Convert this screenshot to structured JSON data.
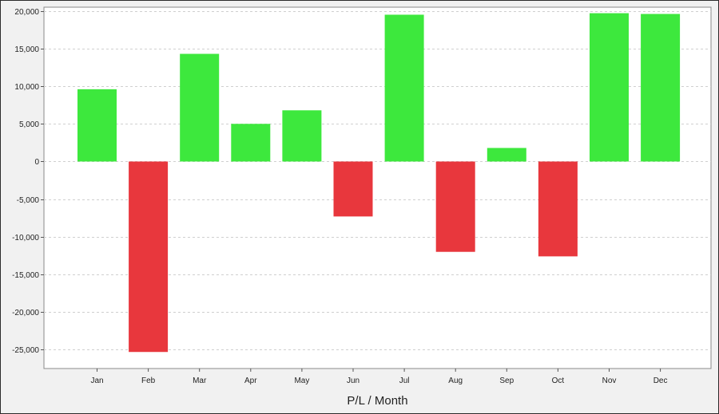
{
  "chart_data": {
    "type": "bar",
    "title": "",
    "xlabel": "P/L / Month",
    "ylabel": "",
    "categories": [
      "Jan",
      "Feb",
      "Mar",
      "Apr",
      "May",
      "Jun",
      "Jul",
      "Aug",
      "Sep",
      "Oct",
      "Nov",
      "Dec"
    ],
    "values": [
      9600,
      -25300,
      14300,
      5000,
      6800,
      -7300,
      19500,
      -12000,
      1800,
      -12600,
      19700,
      19600
    ],
    "ylim": [
      -27500,
      20500
    ],
    "yticks": [
      20000,
      15000,
      10000,
      5000,
      0,
      -5000,
      -10000,
      -15000,
      -20000,
      -25000
    ],
    "ytick_labels": [
      "20,000",
      "15,000",
      "10,000",
      "5,000",
      "0",
      "-5,000",
      "-10,000",
      "-15,000",
      "-20,000",
      "-25,000"
    ],
    "grid": true,
    "colors": {
      "positive": "#3de83d",
      "negative": "#e8373d",
      "grid": "#cfcfcf",
      "plot_bg": "#ffffff",
      "page_bg": "#f1f1f1"
    }
  }
}
